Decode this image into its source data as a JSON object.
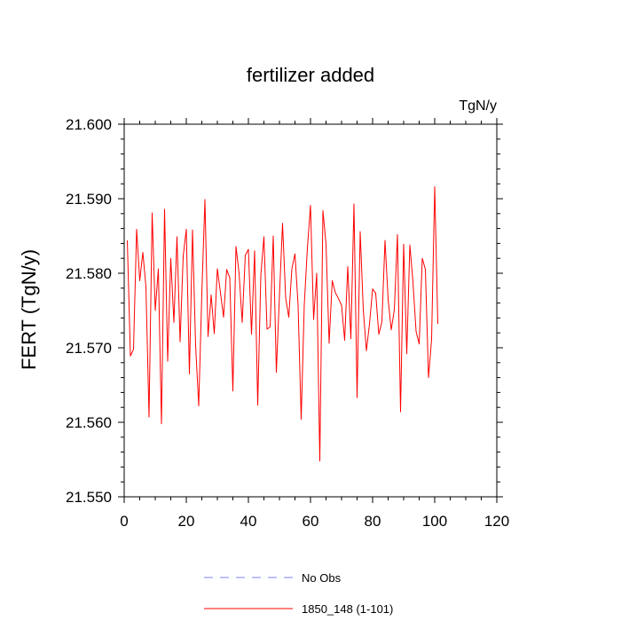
{
  "chart_data": {
    "type": "line",
    "title": "fertilizer added",
    "units": "TgN/y",
    "ylabel": "FERT  (TgN/y)",
    "xlabel": "",
    "xlim": [
      0,
      120
    ],
    "ylim": [
      21.55,
      21.6
    ],
    "xticks": [
      0,
      20,
      40,
      60,
      80,
      100,
      120
    ],
    "xtick_labels": [
      "0",
      "20",
      "40",
      "60",
      "80",
      "100",
      "120"
    ],
    "yticks": [
      21.55,
      21.56,
      21.57,
      21.58,
      21.59,
      21.6
    ],
    "ytick_labels": [
      "21.550",
      "21.560",
      "21.570",
      "21.580",
      "21.590",
      "21.600"
    ],
    "grid": false,
    "legend_position": "bottom",
    "series": [
      {
        "name": "1850_148 (1-101)",
        "color": "#ff0000",
        "x": [
          1,
          2,
          3,
          4,
          5,
          6,
          7,
          8,
          9,
          10,
          11,
          12,
          13,
          14,
          15,
          16,
          17,
          18,
          19,
          20,
          21,
          22,
          23,
          24,
          25,
          26,
          27,
          28,
          29,
          30,
          31,
          32,
          33,
          34,
          35,
          36,
          37,
          38,
          39,
          40,
          41,
          42,
          43,
          44,
          45,
          46,
          47,
          48,
          49,
          50,
          51,
          52,
          53,
          54,
          55,
          56,
          57,
          58,
          59,
          60,
          61,
          62,
          63,
          64,
          65,
          66,
          67,
          68,
          69,
          70,
          71,
          72,
          73,
          74,
          75,
          76,
          77,
          78,
          79,
          80,
          81,
          82,
          83,
          84,
          85,
          86,
          87,
          88,
          89,
          90,
          91,
          92,
          93,
          94,
          95,
          96,
          97,
          98,
          99,
          100,
          101
        ],
        "values": [
          21.5844,
          21.5689,
          21.5698,
          21.5859,
          21.579,
          21.5828,
          21.5782,
          21.5607,
          21.5881,
          21.575,
          21.5806,
          21.5598,
          21.5886,
          21.5682,
          21.582,
          21.5734,
          21.5849,
          21.5708,
          21.5823,
          21.5859,
          21.5665,
          21.5858,
          21.5703,
          21.5622,
          21.5773,
          21.5899,
          21.5715,
          21.5771,
          21.5719,
          21.5806,
          21.5774,
          21.5741,
          21.5805,
          21.5794,
          21.5642,
          21.5836,
          21.58,
          21.5734,
          21.5824,
          21.5832,
          21.5718,
          21.583,
          21.5623,
          21.5797,
          21.5849,
          21.5725,
          21.5728,
          21.585,
          21.5667,
          21.577,
          21.5867,
          21.5767,
          21.5741,
          21.5806,
          21.5826,
          21.5757,
          21.5604,
          21.5758,
          21.5834,
          21.5891,
          21.5738,
          21.58,
          21.5548,
          21.5884,
          21.5839,
          21.5706,
          21.579,
          21.5774,
          21.5766,
          21.5757,
          21.571,
          21.5809,
          21.5712,
          21.5893,
          21.5633,
          21.5856,
          21.5751,
          21.5696,
          21.5732,
          21.5779,
          21.5773,
          21.5718,
          21.5735,
          21.5844,
          21.5765,
          21.5724,
          21.5751,
          21.5852,
          21.5614,
          21.5839,
          21.5692,
          21.5838,
          21.5788,
          21.5722,
          21.5705,
          21.582,
          21.5805,
          21.566,
          21.5711,
          21.5916,
          21.5732
        ]
      }
    ]
  },
  "legend": {
    "obs_label": "No Obs",
    "obs_color": "#7f7fff",
    "model_label": "1850_148 (1-101)",
    "model_color": "#ff0000"
  }
}
